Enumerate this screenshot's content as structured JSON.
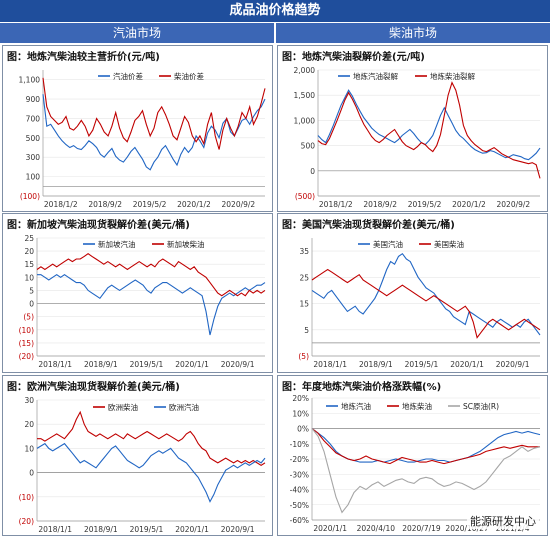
{
  "header": {
    "title": "成品油价格趋势",
    "left_col": "汽油市场",
    "right_col": "柴油市场"
  },
  "watermark": "能源研发中心",
  "colors": {
    "blue": "#2166c4",
    "red": "#c00000",
    "grey": "#a6a6a6",
    "neg_label": "#c00000",
    "header_bg": "#1f4e9c"
  },
  "chart_data": [
    {
      "id": "c1",
      "type": "line",
      "title": "图：地炼汽柴油较主营折价(元/吨)",
      "ylim": [
        -100,
        1200
      ],
      "yticks": [
        -100,
        100,
        300,
        500,
        700,
        900,
        1100
      ],
      "yticklabels": [
        "(100)",
        "100",
        "300",
        "500",
        "700",
        "900",
        "1,100"
      ],
      "xlabels": [
        "2018/1/2",
        "2018/9/2",
        "2019/5/2",
        "2020/1/2",
        "2020/9/2"
      ],
      "series": [
        {
          "name": "汽油价差",
          "color": "#2166c4",
          "values": [
            950,
            620,
            640,
            580,
            520,
            470,
            430,
            400,
            420,
            390,
            380,
            420,
            470,
            440,
            400,
            330,
            300,
            350,
            390,
            310,
            270,
            250,
            300,
            360,
            400,
            340,
            280,
            200,
            170,
            250,
            300,
            380,
            420,
            350,
            280,
            220,
            330,
            400,
            350,
            400,
            520,
            470,
            400,
            550,
            620,
            580,
            500,
            650,
            700,
            560,
            520,
            600,
            680,
            700,
            640,
            720,
            780,
            820,
            900
          ]
        },
        {
          "name": "柴油价差",
          "color": "#c00000",
          "values": [
            1120,
            820,
            720,
            680,
            640,
            660,
            720,
            600,
            580,
            620,
            680,
            620,
            520,
            580,
            700,
            640,
            560,
            520,
            620,
            760,
            600,
            500,
            460,
            560,
            680,
            720,
            780,
            640,
            520,
            600,
            760,
            820,
            740,
            640,
            520,
            480,
            600,
            720,
            660,
            520,
            460,
            520,
            440,
            640,
            760,
            520,
            380,
            580,
            700,
            600,
            520,
            620,
            760,
            700,
            820,
            640,
            720,
            860,
            1010
          ]
        }
      ]
    },
    {
      "id": "c2",
      "type": "line",
      "title": "图：地炼汽柴油裂解价差(元/吨)",
      "ylim": [
        -500,
        2000
      ],
      "yticks": [
        -500,
        0,
        500,
        1000,
        1500,
        2000
      ],
      "yticklabels": [
        "(500)",
        "0",
        "500",
        "1,000",
        "1,500",
        "2,000"
      ],
      "xlabels": [
        "2018/1/2",
        "2018/9/2",
        "2019/5/2",
        "2020/1/2",
        "2020/9/2"
      ],
      "series": [
        {
          "name": "地炼汽油裂解",
          "color": "#2166c4",
          "values": [
            700,
            620,
            560,
            720,
            900,
            1100,
            1300,
            1450,
            1600,
            1480,
            1320,
            1180,
            1050,
            950,
            850,
            780,
            720,
            680,
            640,
            600,
            560,
            620,
            700,
            760,
            820,
            740,
            640,
            560,
            520,
            600,
            700,
            900,
            1100,
            1250,
            1100,
            950,
            800,
            700,
            640,
            560,
            480,
            420,
            380,
            350,
            360,
            400,
            380,
            340,
            300,
            260,
            280,
            320,
            300,
            280,
            240,
            220,
            280,
            350,
            450
          ]
        },
        {
          "name": "地炼柴油裂解",
          "color": "#c00000",
          "values": [
            600,
            540,
            520,
            640,
            820,
            1000,
            1200,
            1400,
            1550,
            1420,
            1260,
            1080,
            920,
            800,
            680,
            600,
            560,
            620,
            700,
            760,
            820,
            700,
            580,
            500,
            460,
            420,
            480,
            560,
            520,
            440,
            380,
            500,
            720,
            1100,
            1500,
            1750,
            1600,
            1300,
            900,
            700,
            600,
            520,
            460,
            400,
            380,
            420,
            460,
            400,
            340,
            300,
            260,
            220,
            200,
            180,
            160,
            140,
            160,
            120,
            -150
          ]
        }
      ]
    },
    {
      "id": "c3",
      "type": "line",
      "title": "图：新加坡汽柴油现货裂解价差(美元/桶)",
      "ylim": [
        -20,
        25
      ],
      "yticks": [
        -20,
        -15,
        -10,
        -5,
        0,
        5,
        10,
        15,
        20,
        25
      ],
      "yticklabels": [
        "(20)",
        "(15)",
        "(10)",
        "(5)",
        "0",
        "5",
        "10",
        "15",
        "20",
        "25"
      ],
      "xlabels": [
        "2018/1/1",
        "2018/9/1",
        "2019/5/1",
        "2020/1/1",
        "2020/9/1"
      ],
      "series": [
        {
          "name": "新加坡汽油",
          "color": "#2166c4",
          "values": [
            11,
            11,
            10,
            9,
            10,
            11,
            10,
            11,
            10,
            9,
            8,
            8,
            7,
            5,
            4,
            3,
            2,
            4,
            6,
            7,
            6,
            5,
            6,
            7,
            8,
            9,
            8,
            7,
            5,
            4,
            6,
            7,
            8,
            8,
            7,
            6,
            5,
            4,
            5,
            6,
            5,
            4,
            3,
            -3,
            -12,
            -6,
            -1,
            2,
            3,
            4,
            3,
            4,
            5,
            6,
            5,
            6,
            7,
            7,
            8
          ]
        },
        {
          "name": "新加坡柴油",
          "color": "#c00000",
          "values": [
            13,
            14,
            13,
            14,
            15,
            14,
            15,
            16,
            17,
            16,
            17,
            17,
            18,
            19,
            18,
            17,
            16,
            15,
            16,
            15,
            14,
            15,
            14,
            13,
            14,
            15,
            16,
            15,
            14,
            15,
            14,
            16,
            17,
            16,
            15,
            14,
            16,
            15,
            14,
            13,
            14,
            12,
            11,
            10,
            8,
            6,
            4,
            3,
            4,
            5,
            4,
            3,
            4,
            3,
            5,
            4,
            5,
            4,
            5
          ]
        }
      ]
    },
    {
      "id": "c4",
      "type": "line",
      "title": "图：美国汽柴油现货裂解价差(美元/桶)",
      "ylim": [
        -5,
        40
      ],
      "yticks": [
        -5,
        5,
        15,
        25,
        35
      ],
      "yticklabels": [
        "(5)",
        "5",
        "15",
        "25",
        "35"
      ],
      "xlabels": [
        "2018/1/1",
        "2018/9/1",
        "2019/5/1",
        "2020/1/1",
        "2020/9/1"
      ],
      "series": [
        {
          "name": "美国汽油",
          "color": "#2166c4",
          "values": [
            20,
            19,
            18,
            17,
            19,
            20,
            18,
            16,
            14,
            12,
            13,
            14,
            12,
            11,
            13,
            15,
            17,
            20,
            24,
            28,
            31,
            30,
            33,
            34,
            32,
            31,
            28,
            25,
            23,
            21,
            20,
            19,
            17,
            15,
            13,
            12,
            10,
            9,
            8,
            7,
            12,
            11,
            10,
            9,
            8,
            7,
            6,
            8,
            9,
            8,
            7,
            6,
            7,
            6,
            8,
            9,
            7,
            5,
            3
          ]
        },
        {
          "name": "美国柴油",
          "color": "#c00000",
          "values": [
            24,
            25,
            26,
            27,
            28,
            27,
            26,
            25,
            24,
            23,
            24,
            25,
            26,
            24,
            23,
            22,
            21,
            20,
            19,
            18,
            19,
            20,
            21,
            22,
            21,
            20,
            19,
            18,
            17,
            16,
            17,
            18,
            17,
            16,
            15,
            14,
            13,
            12,
            13,
            14,
            12,
            8,
            2,
            4,
            6,
            8,
            9,
            8,
            7,
            6,
            5,
            6,
            7,
            8,
            9,
            8,
            7,
            6,
            5
          ]
        }
      ]
    },
    {
      "id": "c5",
      "type": "line",
      "title": "图：欧洲汽柴油现货裂解价差(美元/桶)",
      "ylim": [
        -20,
        30
      ],
      "yticks": [
        -20,
        -10,
        0,
        10,
        20,
        30
      ],
      "yticklabels": [
        "(20)",
        "(10)",
        "0",
        "10",
        "20",
        "30"
      ],
      "xlabels": [
        "2018/1/1",
        "2018/9/1",
        "2019/5/1",
        "2020/1/1",
        "2020/9/1"
      ],
      "series": [
        {
          "name": "欧洲柴油",
          "color": "#c00000",
          "values": [
            14,
            14,
            13,
            14,
            15,
            16,
            15,
            14,
            16,
            18,
            22,
            25,
            20,
            17,
            16,
            15,
            16,
            15,
            14,
            15,
            16,
            15,
            14,
            16,
            15,
            14,
            15,
            16,
            17,
            16,
            15,
            14,
            15,
            16,
            15,
            14,
            13,
            14,
            16,
            17,
            15,
            12,
            10,
            9,
            6,
            5,
            4,
            5,
            6,
            5,
            4,
            5,
            4,
            5,
            4,
            5,
            4,
            3,
            4
          ]
        },
        {
          "name": "欧洲汽油",
          "color": "#2166c4",
          "values": [
            10,
            11,
            12,
            10,
            9,
            10,
            11,
            12,
            10,
            8,
            6,
            4,
            5,
            4,
            3,
            2,
            4,
            6,
            8,
            10,
            11,
            9,
            7,
            5,
            4,
            3,
            2,
            3,
            5,
            7,
            8,
            9,
            8,
            9,
            10,
            8,
            6,
            5,
            4,
            2,
            0,
            -2,
            -5,
            -8,
            -12,
            -9,
            -5,
            -2,
            1,
            2,
            3,
            2,
            3,
            4,
            3,
            4,
            5,
            4,
            6
          ]
        }
      ]
    },
    {
      "id": "c6",
      "type": "line",
      "title": "图：年度地炼汽柴油价格涨跌幅(%)",
      "ylim": [
        -60,
        20
      ],
      "yticks": [
        -60,
        -50,
        -40,
        -30,
        -20,
        -10,
        0,
        10,
        20
      ],
      "yticklabels": [
        "-60%",
        "-50%",
        "-40%",
        "-30%",
        "-20%",
        "-10%",
        "0%",
        "10%",
        "20%"
      ],
      "xlabels": [
        "2020/1/1",
        "2020/4/10",
        "2020/7/19",
        "2020/10/27",
        "2021/2/4"
      ],
      "series": [
        {
          "name": "地炼汽油",
          "color": "#2166c4",
          "values": [
            0,
            -3,
            -6,
            -10,
            -15,
            -18,
            -20,
            -21,
            -22,
            -22,
            -22,
            -21,
            -22,
            -21,
            -20,
            -21,
            -22,
            -22,
            -21,
            -20,
            -20,
            -21,
            -21,
            -22,
            -21,
            -20,
            -19,
            -17,
            -15,
            -12,
            -9,
            -6,
            -4,
            -3,
            -2,
            -3,
            -2,
            -3,
            -4
          ]
        },
        {
          "name": "地炼柴油",
          "color": "#c00000",
          "values": [
            0,
            -3,
            -8,
            -12,
            -16,
            -18,
            -20,
            -21,
            -20,
            -18,
            -20,
            -21,
            -22,
            -23,
            -21,
            -19,
            -20,
            -21,
            -22,
            -22,
            -21,
            -22,
            -23,
            -22,
            -21,
            -20,
            -19,
            -18,
            -17,
            -15,
            -14,
            -13,
            -12,
            -13,
            -12,
            -11,
            -12,
            -12,
            -12
          ]
        },
        {
          "name": "SC原油(R)",
          "color": "#a6a6a6",
          "values": [
            0,
            -5,
            -15,
            -30,
            -45,
            -55,
            -50,
            -42,
            -38,
            -40,
            -37,
            -35,
            -38,
            -36,
            -34,
            -33,
            -35,
            -36,
            -33,
            -32,
            -33,
            -36,
            -38,
            -37,
            -35,
            -36,
            -38,
            -40,
            -38,
            -35,
            -30,
            -25,
            -20,
            -18,
            -15,
            -12,
            -15,
            -13,
            -12
          ]
        }
      ]
    }
  ]
}
